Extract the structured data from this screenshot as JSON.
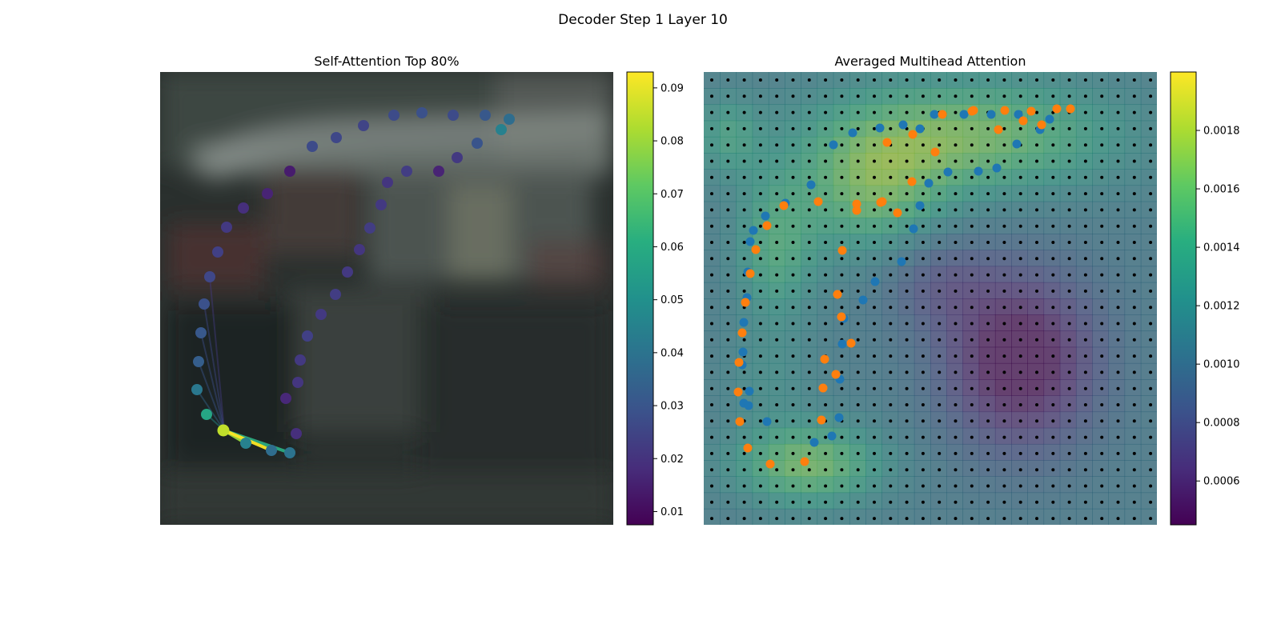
{
  "figure": {
    "title": "Decoder Step 1 Layer 10"
  },
  "chart_data": [
    {
      "type": "scatter",
      "title": "Self-Attention Top 80%",
      "background": "blurred dark photograph of a parked vehicle",
      "colormap": "viridis",
      "colorbar": {
        "range": [
          0.0075,
          0.093
        ],
        "ticks": [
          "0.01",
          "0.02",
          "0.03",
          "0.04",
          "0.05",
          "0.06",
          "0.07",
          "0.08",
          "0.09"
        ],
        "tick_values": [
          0.01,
          0.02,
          0.03,
          0.04,
          0.05,
          0.06,
          0.07,
          0.08,
          0.09
        ]
      },
      "query_point": {
        "x": 80,
        "y": 448,
        "value": 0.085
      },
      "points": [
        {
          "x": 79,
          "y": 448,
          "v": 0.085
        },
        {
          "x": 107,
          "y": 464,
          "v": 0.045
        },
        {
          "x": 139,
          "y": 473,
          "v": 0.038
        },
        {
          "x": 162,
          "y": 476,
          "v": 0.04
        },
        {
          "x": 58,
          "y": 428,
          "v": 0.058
        },
        {
          "x": 46,
          "y": 397,
          "v": 0.042
        },
        {
          "x": 48,
          "y": 362,
          "v": 0.033
        },
        {
          "x": 51,
          "y": 326,
          "v": 0.031
        },
        {
          "x": 55,
          "y": 290,
          "v": 0.029
        },
        {
          "x": 62,
          "y": 256,
          "v": 0.026
        },
        {
          "x": 72,
          "y": 225,
          "v": 0.024
        },
        {
          "x": 83,
          "y": 194,
          "v": 0.022
        },
        {
          "x": 104,
          "y": 170,
          "v": 0.019
        },
        {
          "x": 134,
          "y": 152,
          "v": 0.016
        },
        {
          "x": 162,
          "y": 124,
          "v": 0.014
        },
        {
          "x": 190,
          "y": 93,
          "v": 0.027
        },
        {
          "x": 220,
          "y": 82,
          "v": 0.026
        },
        {
          "x": 254,
          "y": 67,
          "v": 0.025
        },
        {
          "x": 292,
          "y": 54,
          "v": 0.027
        },
        {
          "x": 327,
          "y": 51,
          "v": 0.029
        },
        {
          "x": 366,
          "y": 54,
          "v": 0.027
        },
        {
          "x": 406,
          "y": 54,
          "v": 0.031
        },
        {
          "x": 436,
          "y": 59,
          "v": 0.038
        },
        {
          "x": 426,
          "y": 72,
          "v": 0.045
        },
        {
          "x": 396,
          "y": 89,
          "v": 0.03
        },
        {
          "x": 371,
          "y": 107,
          "v": 0.022
        },
        {
          "x": 348,
          "y": 124,
          "v": 0.016
        },
        {
          "x": 308,
          "y": 124,
          "v": 0.023
        },
        {
          "x": 284,
          "y": 138,
          "v": 0.021
        },
        {
          "x": 276,
          "y": 166,
          "v": 0.022
        },
        {
          "x": 262,
          "y": 195,
          "v": 0.023
        },
        {
          "x": 249,
          "y": 222,
          "v": 0.021
        },
        {
          "x": 234,
          "y": 250,
          "v": 0.022
        },
        {
          "x": 219,
          "y": 278,
          "v": 0.023
        },
        {
          "x": 201,
          "y": 303,
          "v": 0.022
        },
        {
          "x": 184,
          "y": 330,
          "v": 0.024
        },
        {
          "x": 175,
          "y": 360,
          "v": 0.022
        },
        {
          "x": 172,
          "y": 388,
          "v": 0.021
        },
        {
          "x": 157,
          "y": 408,
          "v": 0.017
        },
        {
          "x": 170,
          "y": 452,
          "v": 0.019
        }
      ],
      "attention_links": [
        {
          "to": 1,
          "w": 0.08
        },
        {
          "to": 2,
          "w": 0.093
        },
        {
          "to": 3,
          "w": 0.06
        },
        {
          "to": 4,
          "w": 0.05
        },
        {
          "to": 5,
          "w": 0.035
        },
        {
          "to": 6,
          "w": 0.03
        },
        {
          "to": 7,
          "w": 0.028
        },
        {
          "to": 8,
          "w": 0.026
        },
        {
          "to": 9,
          "w": 0.022
        }
      ]
    },
    {
      "type": "heatmap",
      "title": "Averaged Multihead Attention",
      "colormap": "viridis",
      "grid": {
        "rows": 28,
        "cols": 28,
        "cell_markers": "black dots at every cell"
      },
      "colorbar": {
        "range": [
          0.00045,
          0.002
        ],
        "ticks": [
          "0.0006",
          "0.0008",
          "0.0010",
          "0.0012",
          "0.0014",
          "0.0016",
          "0.0018"
        ],
        "tick_values": [
          0.0006,
          0.0008,
          0.001,
          0.0012,
          0.0014,
          0.0016,
          0.0018
        ]
      },
      "heat_blobs": [
        {
          "cx": 330,
          "cy": 80,
          "sx": 180,
          "sy": 70,
          "amp": 0.0006
        },
        {
          "cx": 210,
          "cy": 150,
          "sx": 90,
          "sy": 80,
          "amp": 0.0005
        },
        {
          "cx": 90,
          "cy": 220,
          "sx": 50,
          "sy": 90,
          "amp": 0.0004
        },
        {
          "cx": 130,
          "cy": 490,
          "sx": 90,
          "sy": 50,
          "amp": 0.0006
        },
        {
          "cx": 30,
          "cy": 80,
          "sx": 40,
          "sy": 50,
          "amp": 0.0003
        },
        {
          "cx": 395,
          "cy": 360,
          "sx": 95,
          "sy": 110,
          "amp": -0.0007
        },
        {
          "cx": 290,
          "cy": 260,
          "sx": 70,
          "sy": 60,
          "amp": -0.00025
        },
        {
          "cx": 80,
          "cy": 380,
          "sx": 60,
          "sy": 60,
          "amp": 0.00015
        }
      ],
      "heat_base": 0.00105,
      "series": [
        {
          "color": "#1f77b4",
          "points": [
            [
              50,
              414
            ],
            [
              57,
              399
            ],
            [
              48,
              366
            ],
            [
              49,
              350
            ],
            [
              50,
              313
            ],
            [
              54,
              282
            ],
            [
              55,
              250
            ],
            [
              58,
              212
            ],
            [
              62,
              198
            ],
            [
              77,
              180
            ],
            [
              102,
              164
            ],
            [
              134,
              141
            ],
            [
              162,
              91
            ],
            [
              186,
              76
            ],
            [
              220,
              70
            ],
            [
              249,
              66
            ],
            [
              270,
              71
            ],
            [
              288,
              53
            ],
            [
              325,
              53
            ],
            [
              359,
              53
            ],
            [
              393,
              53
            ],
            [
              432,
              59
            ],
            [
              420,
              72
            ],
            [
              391,
              90
            ],
            [
              366,
              120
            ],
            [
              343,
              124
            ],
            [
              305,
              125
            ],
            [
              281,
              139
            ],
            [
              270,
              167
            ],
            [
              262,
              196
            ],
            [
              247,
              237
            ],
            [
              214,
              262
            ],
            [
              199,
              285
            ],
            [
              175,
              308
            ],
            [
              173,
              340
            ],
            [
              170,
              384
            ],
            [
              169,
              432
            ],
            [
              160,
              455
            ],
            [
              138,
              463
            ],
            [
              79,
              437
            ],
            [
              56,
              417
            ]
          ]
        },
        {
          "color": "#ff7f0e",
          "points": [
            [
              55,
              470
            ],
            [
              45,
              437
            ],
            [
              43,
              400
            ],
            [
              44,
              363
            ],
            [
              48,
              326
            ],
            [
              52,
              288
            ],
            [
              58,
              252
            ],
            [
              65,
              222
            ],
            [
              79,
              192
            ],
            [
              100,
              167
            ],
            [
              143,
              162
            ],
            [
              191,
              165
            ],
            [
              223,
              162
            ],
            [
              229,
              88
            ],
            [
              261,
              78
            ],
            [
              298,
              53
            ],
            [
              337,
              48
            ],
            [
              376,
              48
            ],
            [
              409,
              49
            ],
            [
              441,
              46
            ],
            [
              458,
              46
            ],
            [
              422,
              66
            ],
            [
              399,
              61
            ],
            [
              368,
              72
            ],
            [
              335,
              49
            ],
            [
              289,
              100
            ],
            [
              260,
              137
            ],
            [
              242,
              176
            ],
            [
              221,
              163
            ],
            [
              191,
              173
            ],
            [
              173,
              223
            ],
            [
              167,
              278
            ],
            [
              172,
              306
            ],
            [
              184,
              339
            ],
            [
              165,
              378
            ],
            [
              151,
              359
            ],
            [
              149,
              395
            ],
            [
              147,
              435
            ],
            [
              126,
              487
            ],
            [
              83,
              490
            ]
          ]
        }
      ]
    }
  ]
}
